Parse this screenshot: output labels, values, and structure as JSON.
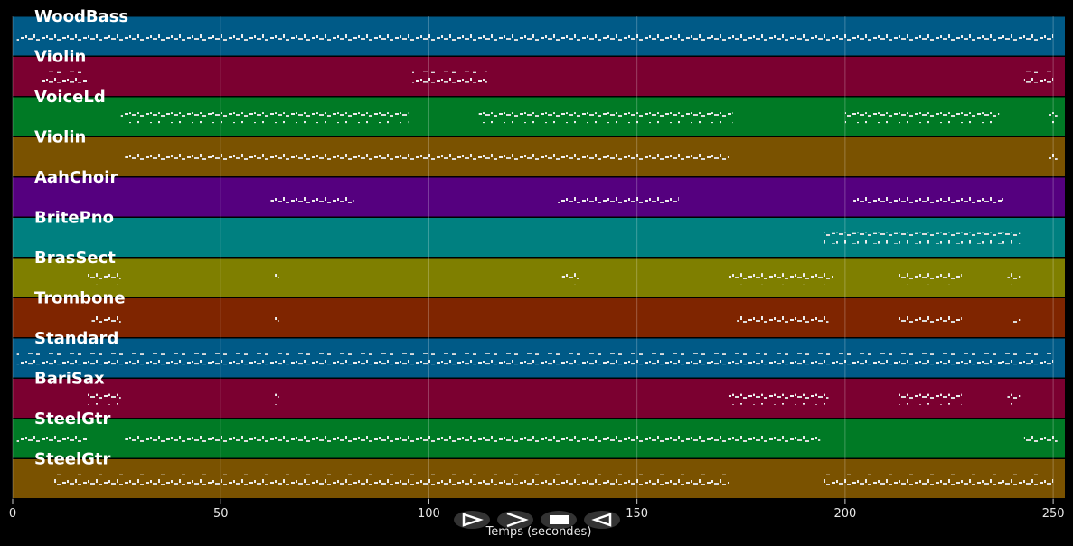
{
  "chart_data": {
    "type": "pianoroll",
    "xlabel": "Temps (secondes)",
    "xlim": [
      0,
      252.8
    ],
    "xticks": [
      0,
      50,
      100,
      150,
      200,
      250
    ],
    "grid": true,
    "tracks": [
      {
        "name": "WoodBass",
        "color": "#005a87",
        "segments": [
          [
            1,
            250
          ]
        ]
      },
      {
        "name": "Violin",
        "color": "#7b0030",
        "segments": [
          [
            7,
            18
          ],
          [
            96,
            114
          ],
          [
            243,
            250
          ]
        ]
      },
      {
        "name": "VoiceLd",
        "color": "#007a25",
        "segments": [
          [
            26,
            95
          ],
          [
            112,
            173
          ],
          [
            200,
            237
          ],
          [
            249,
            251
          ]
        ]
      },
      {
        "name": "Violin",
        "color": "#7a5200",
        "segments": [
          [
            27,
            172
          ],
          [
            249,
            251
          ]
        ]
      },
      {
        "name": "AahChoir",
        "color": "#55007f",
        "segments": [
          [
            62,
            82
          ],
          [
            131,
            160
          ],
          [
            202,
            238
          ]
        ]
      },
      {
        "name": "BritePno",
        "color": "#008080",
        "segments": [
          [
            195,
            242
          ]
        ]
      },
      {
        "name": "BrasSect",
        "color": "#7f7f00",
        "segments": [
          [
            18,
            26
          ],
          [
            63,
            64
          ],
          [
            132,
            136
          ],
          [
            172,
            197
          ],
          [
            213,
            228
          ],
          [
            239,
            242
          ]
        ]
      },
      {
        "name": "Trombone",
        "color": "#7f2500",
        "segments": [
          [
            19,
            26
          ],
          [
            63,
            64
          ],
          [
            174,
            196
          ],
          [
            213,
            228
          ],
          [
            240,
            242
          ]
        ]
      },
      {
        "name": "Standard",
        "color": "#005a87",
        "segments": [
          [
            1,
            250
          ]
        ]
      },
      {
        "name": "BariSax",
        "color": "#7b0030",
        "segments": [
          [
            18,
            26
          ],
          [
            63,
            64
          ],
          [
            172,
            196
          ],
          [
            213,
            228
          ],
          [
            239,
            242
          ]
        ]
      },
      {
        "name": "SteelGtr",
        "color": "#007a25",
        "segments": [
          [
            1,
            18
          ],
          [
            27,
            194
          ],
          [
            243,
            251
          ]
        ]
      },
      {
        "name": "SteelGtr",
        "color": "#7a5200",
        "segments": [
          [
            10,
            172
          ],
          [
            195,
            250
          ]
        ]
      }
    ]
  }
}
